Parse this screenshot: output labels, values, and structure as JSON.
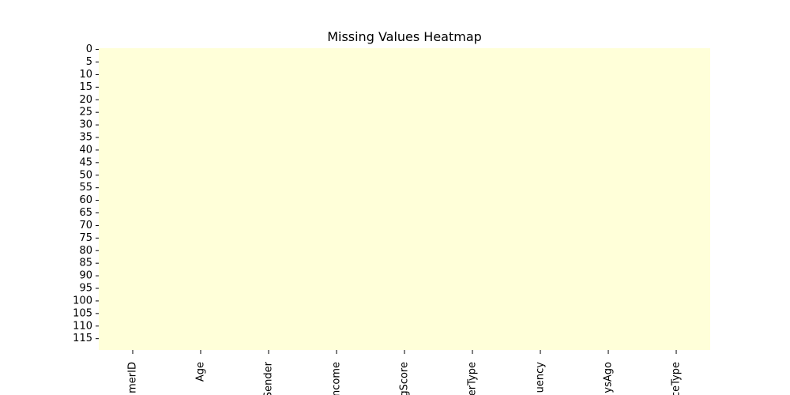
{
  "chart_data": {
    "type": "heatmap",
    "title": "Missing Values Heatmap",
    "xlabel": "",
    "ylabel": "",
    "columns": [
      "merID",
      "Age",
      "Sender",
      "ncome",
      "gScore",
      "erType",
      "uency",
      "ysAgo",
      "ceType"
    ],
    "row_ticks": [
      "0",
      "5",
      "10",
      "15",
      "20",
      "25",
      "30",
      "35",
      "40",
      "45",
      "50",
      "55",
      "60",
      "65",
      "70",
      "75",
      "80",
      "85",
      "90",
      "95",
      "100",
      "105",
      "110",
      "115"
    ],
    "row_count": 120,
    "missing_counts": [
      0,
      0,
      0,
      0,
      0,
      0,
      0,
      0,
      0
    ],
    "cell_color": "#ffffd9",
    "missing_color": "#081d58",
    "colorbar": false
  }
}
